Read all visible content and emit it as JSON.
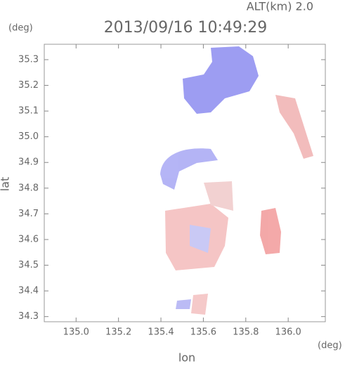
{
  "chart_data": {
    "type": "map",
    "title": "2013/09/16 10:49:29",
    "altitude_label": "ALT(km)  2.0",
    "x_label": "lon",
    "y_label": "lat",
    "x_unit": "(deg)",
    "y_unit": "(deg)",
    "xlim": [
      134.85,
      136.175
    ],
    "xticks": [
      {
        "value": 135.0,
        "label": "135.0"
      },
      135.2,
      135.4,
      135.6,
      135.8,
      {
        "value": 136.0,
        "label": "136.0"
      }
    ],
    "ylim": [
      34.28,
      35.36
    ],
    "yticks": [
      34.3,
      34.4,
      34.5,
      34.6,
      34.7,
      34.8,
      34.9,
      {
        "value": 35.0,
        "label": "35.0"
      },
      35.1,
      35.2,
      35.3
    ]
  }
}
